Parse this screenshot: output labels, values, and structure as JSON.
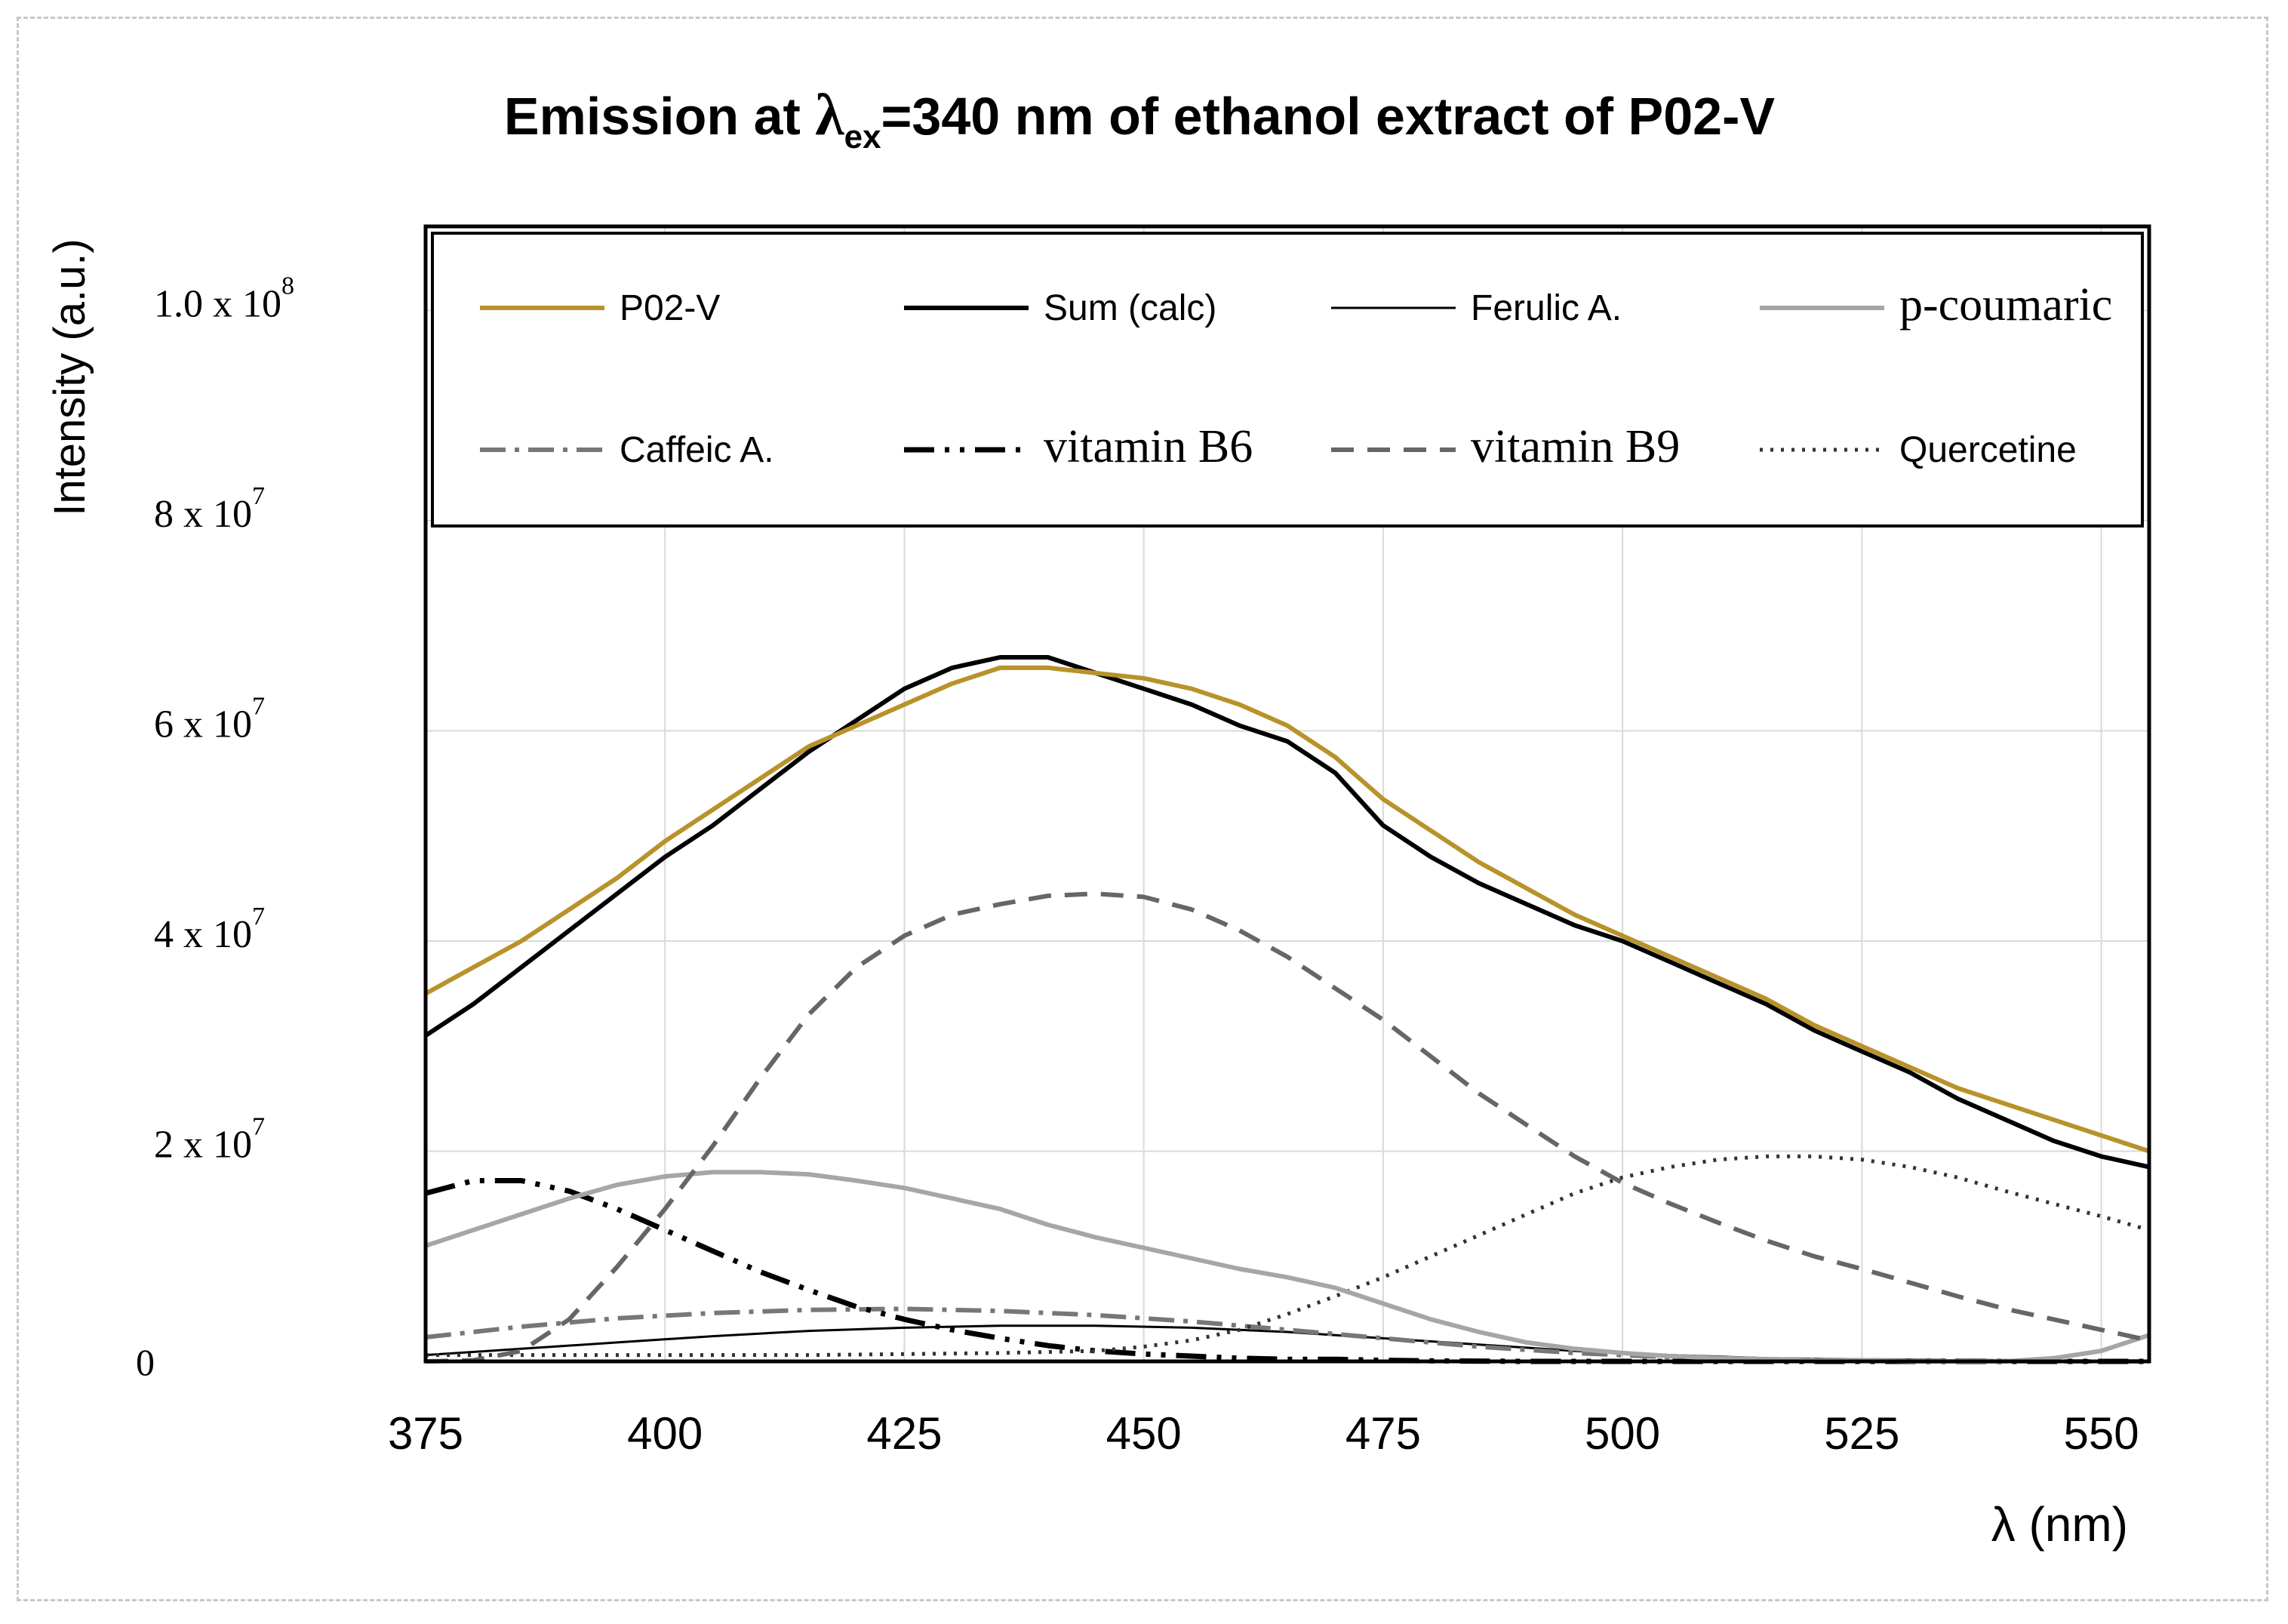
{
  "chart_data": {
    "type": "line",
    "title_prefix": "Emission at ",
    "title_lambda": "λ",
    "title_sub": "ex",
    "title_suffix": "=340 nm of ethanol extract of P02-V",
    "xlabel": "λ (nm)",
    "ylabel": "Intensity (a.u.)",
    "xlim": [
      375,
      555
    ],
    "ylim": [
      0,
      108000000
    ],
    "x_ticks": [
      375,
      400,
      425,
      450,
      475,
      500,
      525,
      550
    ],
    "x_tick_labels": [
      "375",
      "400",
      "425",
      "450",
      "475",
      "500",
      "525",
      "550"
    ],
    "y_ticks": [
      {
        "value": 0,
        "mantissa": "0",
        "exp": ""
      },
      {
        "value": 20000000,
        "mantissa": "2 x 10",
        "exp": "7"
      },
      {
        "value": 40000000,
        "mantissa": "4 x 10",
        "exp": "7"
      },
      {
        "value": 60000000,
        "mantissa": "6 x 10",
        "exp": "7"
      },
      {
        "value": 80000000,
        "mantissa": "8 x 10",
        "exp": "7"
      },
      {
        "value": 100000000,
        "mantissa": "1.0 x 10",
        "exp": "8"
      }
    ],
    "grid": true,
    "legend_position": "top",
    "series": [
      {
        "name": "P02-V",
        "color": "#b8922a",
        "style": "solid-thick",
        "x": [
          375,
          380,
          385,
          390,
          395,
          400,
          405,
          410,
          415,
          420,
          425,
          430,
          435,
          440,
          445,
          450,
          455,
          460,
          465,
          470,
          475,
          480,
          485,
          490,
          495,
          500,
          505,
          510,
          515,
          520,
          525,
          530,
          535,
          540,
          545,
          550,
          555
        ],
        "y": [
          35000000.0,
          37500000.0,
          40000000.0,
          43000000.0,
          46000000.0,
          49500000.0,
          52500000.0,
          55500000.0,
          58500000.0,
          60500000.0,
          62500000.0,
          64500000.0,
          66000000.0,
          66000000.0,
          65500000.0,
          65000000.0,
          64000000.0,
          62500000.0,
          60500000.0,
          57500000.0,
          53500000.0,
          50500000.0,
          47500000.0,
          45000000.0,
          42500000.0,
          40500000.0,
          38500000.0,
          36500000.0,
          34500000.0,
          32000000.0,
          30000000.0,
          28000000.0,
          26000000.0,
          24500000.0,
          23000000.0,
          21500000.0,
          20000000.0
        ]
      },
      {
        "name": "Sum (calc)",
        "color": "#000000",
        "style": "solid-thick",
        "x": [
          375,
          380,
          385,
          390,
          395,
          400,
          405,
          410,
          415,
          420,
          425,
          430,
          435,
          440,
          445,
          450,
          455,
          460,
          465,
          470,
          475,
          480,
          485,
          490,
          495,
          500,
          505,
          510,
          515,
          520,
          525,
          530,
          535,
          540,
          545,
          550,
          555
        ],
        "y": [
          31000000.0,
          34000000.0,
          37500000.0,
          41000000.0,
          44500000.0,
          48000000.0,
          51000000.0,
          54500000.0,
          58000000.0,
          61000000.0,
          64000000.0,
          66000000.0,
          67000000.0,
          67000000.0,
          65500000.0,
          64000000.0,
          62500000.0,
          60500000.0,
          59000000.0,
          56000000.0,
          51000000.0,
          48000000.0,
          45500000.0,
          43500000.0,
          41500000.0,
          40000000.0,
          38000000.0,
          36000000.0,
          34000000.0,
          31500000.0,
          29500000.0,
          27500000.0,
          25000000.0,
          23000000.0,
          21000000.0,
          19500000.0,
          18500000.0
        ]
      },
      {
        "name": "Ferulic A.",
        "color": "#000000",
        "style": "solid-thin",
        "x": [
          375,
          385,
          395,
          405,
          415,
          425,
          435,
          445,
          455,
          465,
          475,
          485,
          495,
          505,
          515,
          525,
          535,
          545,
          555
        ],
        "y": [
          600000.0,
          1200000.0,
          1800000.0,
          2400000.0,
          2900000.0,
          3200000.0,
          3400000.0,
          3400000.0,
          3200000.0,
          2800000.0,
          2200000.0,
          1600000.0,
          1000000.0,
          600000.0,
          300000.0,
          200000.0,
          100000.0,
          50000.0,
          0.0
        ]
      },
      {
        "name": "p-coumaric",
        "color": "#a6a6a6",
        "style": "solid-mid",
        "x": [
          375,
          380,
          385,
          390,
          395,
          400,
          405,
          410,
          415,
          420,
          425,
          430,
          435,
          440,
          445,
          450,
          455,
          460,
          465,
          470,
          475,
          480,
          485,
          490,
          495,
          500,
          505,
          510,
          515,
          520,
          525,
          530,
          535,
          540,
          545,
          550,
          555
        ],
        "y": [
          11000000.0,
          12500000.0,
          14000000.0,
          15500000.0,
          16800000.0,
          17600000.0,
          18000000.0,
          18000000.0,
          17800000.0,
          17200000.0,
          16500000.0,
          15500000.0,
          14500000.0,
          13000000.0,
          11800000.0,
          10800000.0,
          9800000.0,
          8800000.0,
          8000000.0,
          7000000.0,
          5500000.0,
          4000000.0,
          2800000.0,
          1800000.0,
          1200000.0,
          800000.0,
          500000.0,
          300000.0,
          200000.0,
          100000.0,
          100000.0,
          0.0,
          0.0,
          0.0,
          300000.0,
          1000000.0,
          2500000.0
        ]
      },
      {
        "name": "Caffeic A.",
        "color": "#777777",
        "style": "dashdot",
        "x": [
          375,
          385,
          395,
          405,
          415,
          425,
          435,
          445,
          455,
          465,
          475,
          485,
          495,
          505,
          515,
          525,
          535,
          545,
          555
        ],
        "y": [
          2300000.0,
          3300000.0,
          4100000.0,
          4600000.0,
          4900000.0,
          5000000.0,
          4800000.0,
          4400000.0,
          3800000.0,
          3000000.0,
          2200000.0,
          1400000.0,
          800000.0,
          400000.0,
          200000.0,
          100000.0,
          50000.0,
          0.0,
          0.0
        ]
      },
      {
        "name": "vitamin B6",
        "color": "#000000",
        "style": "dashdotdot",
        "x": [
          375,
          380,
          385,
          390,
          395,
          400,
          405,
          410,
          415,
          420,
          425,
          430,
          435,
          440,
          445,
          450,
          455,
          460,
          465,
          470,
          475,
          480,
          490,
          500,
          510,
          520,
          530,
          540,
          555
        ],
        "y": [
          16000000.0,
          17200000.0,
          17200000.0,
          16200000.0,
          14500000.0,
          12500000.0,
          10500000.0,
          8500000.0,
          6800000.0,
          5200000.0,
          4000000.0,
          3000000.0,
          2200000.0,
          1500000.0,
          1000000.0,
          700000.0,
          500000.0,
          300000.0,
          200000.0,
          200000.0,
          100000.0,
          50000.0,
          0.0,
          0.0,
          0.0,
          0.0,
          0.0,
          0.0,
          0.0
        ]
      },
      {
        "name": "vitamin B9",
        "color": "#666666",
        "style": "dashed",
        "x": [
          375,
          380,
          385,
          390,
          395,
          400,
          405,
          410,
          415,
          420,
          425,
          430,
          435,
          440,
          445,
          450,
          455,
          460,
          465,
          470,
          475,
          480,
          485,
          490,
          495,
          500,
          505,
          510,
          515,
          520,
          525,
          530,
          535,
          540,
          545,
          550,
          555
        ],
        "y": [
          0.0,
          100000.0,
          1000000.0,
          4000000.0,
          9000000.0,
          14500000.0,
          20500000.0,
          27000000.0,
          33000000.0,
          37500000.0,
          40500000.0,
          42500000.0,
          43500000.0,
          44300000.0,
          44500000.0,
          44200000.0,
          43000000.0,
          41000000.0,
          38500000.0,
          35500000.0,
          32500000.0,
          29000000.0,
          25500000.0,
          22500000.0,
          19500000.0,
          17000000.0,
          15000000.0,
          13200000.0,
          11500000.0,
          10000000.0,
          8800000.0,
          7500000.0,
          6200000.0,
          5000000.0,
          4000000.0,
          3000000.0,
          2000000.0
        ]
      },
      {
        "name": "Quercetine",
        "color": "#333333",
        "style": "dotted",
        "x": [
          375,
          385,
          395,
          405,
          415,
          425,
          435,
          445,
          450,
          455,
          460,
          465,
          470,
          475,
          480,
          485,
          490,
          495,
          500,
          505,
          510,
          515,
          520,
          525,
          530,
          535,
          540,
          545,
          550,
          555
        ],
        "y": [
          600000.0,
          600000.0,
          600000.0,
          600000.0,
          600000.0,
          700000.0,
          800000.0,
          1000000.0,
          1400000.0,
          2000000.0,
          3000000.0,
          4500000.0,
          6200000.0,
          8000000.0,
          10000000.0,
          12000000.0,
          14000000.0,
          16000000.0,
          17500000.0,
          18500000.0,
          19200000.0,
          19500000.0,
          19500000.0,
          19200000.0,
          18500000.0,
          17500000.0,
          16200000.0,
          15000000.0,
          13800000.0,
          12500000.0
        ]
      }
    ]
  }
}
